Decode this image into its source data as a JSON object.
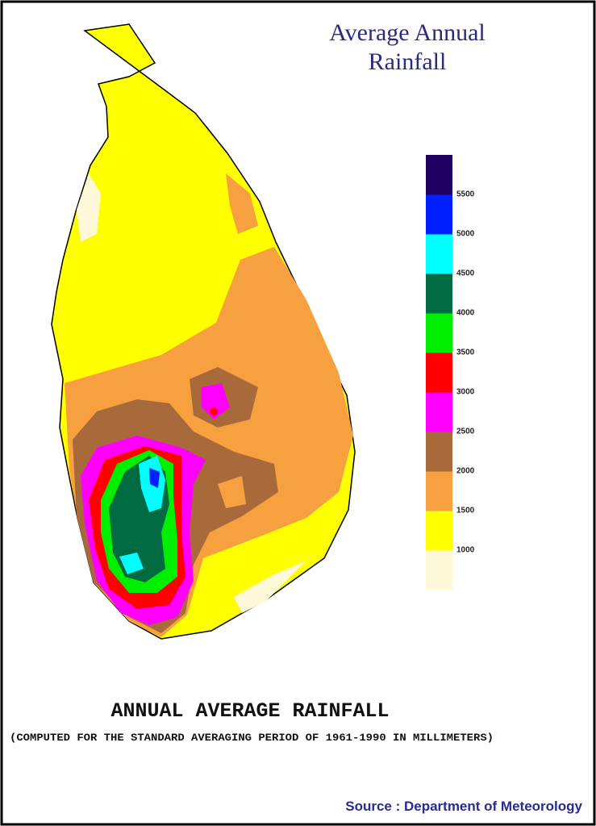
{
  "title": [
    "Average Annual",
    "Rainfall"
  ],
  "legend": {
    "colors": [
      "#fcf8d8",
      "#ffff00",
      "#f7a040",
      "#a86a3a",
      "#ff00ff",
      "#ff0000",
      "#00ee00",
      "#006a40",
      "#00ffff",
      "#0020ff",
      "#200060"
    ],
    "labels": [
      "1000",
      "1500",
      "2000",
      "2500",
      "3000",
      "3500",
      "4000",
      "4500",
      "5000",
      "5500"
    ]
  },
  "caption": {
    "heading": "ANNUAL AVERAGE RAINFALL",
    "note": "(COMPUTED FOR THE STANDARD AVERAGING PERIOD OF 1961-1990 IN MILLIMETERS)"
  },
  "source": "Source : Department of Meteorology"
}
